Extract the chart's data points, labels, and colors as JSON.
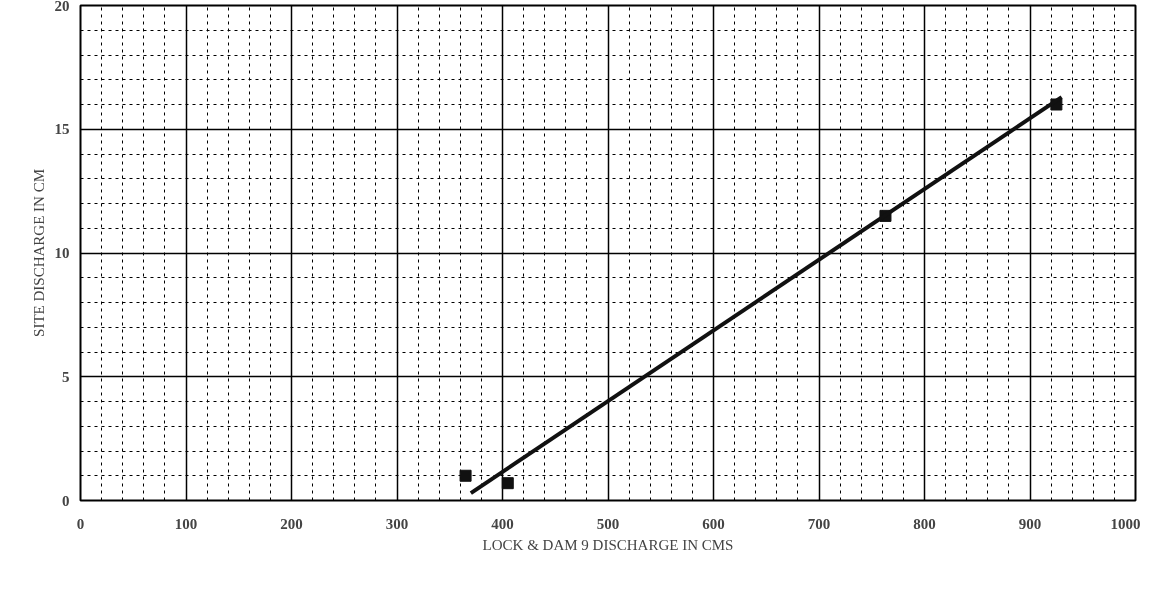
{
  "chart_data": {
    "type": "scatter",
    "xlabel": "LOCK & DAM 9 DISCHARGE IN CMS",
    "ylabel": "SITE DISCHARGE IN CM",
    "xlim": [
      0,
      1000
    ],
    "ylim": [
      0,
      20
    ],
    "xticks": [
      0,
      100,
      200,
      300,
      400,
      500,
      600,
      700,
      800,
      900,
      1000
    ],
    "yticks": [
      0,
      5,
      10,
      15,
      20
    ],
    "grid": true,
    "marker": "square",
    "series": [
      {
        "color": "#111111",
        "x": [
          365,
          405,
          763,
          925
        ],
        "values": [
          1.0,
          0.7,
          11.5,
          16.0
        ]
      },
      {
        "type": "line",
        "marker": "none",
        "color": "#111111",
        "x": [
          370,
          930
        ],
        "values": [
          0.3,
          16.3
        ]
      }
    ]
  }
}
